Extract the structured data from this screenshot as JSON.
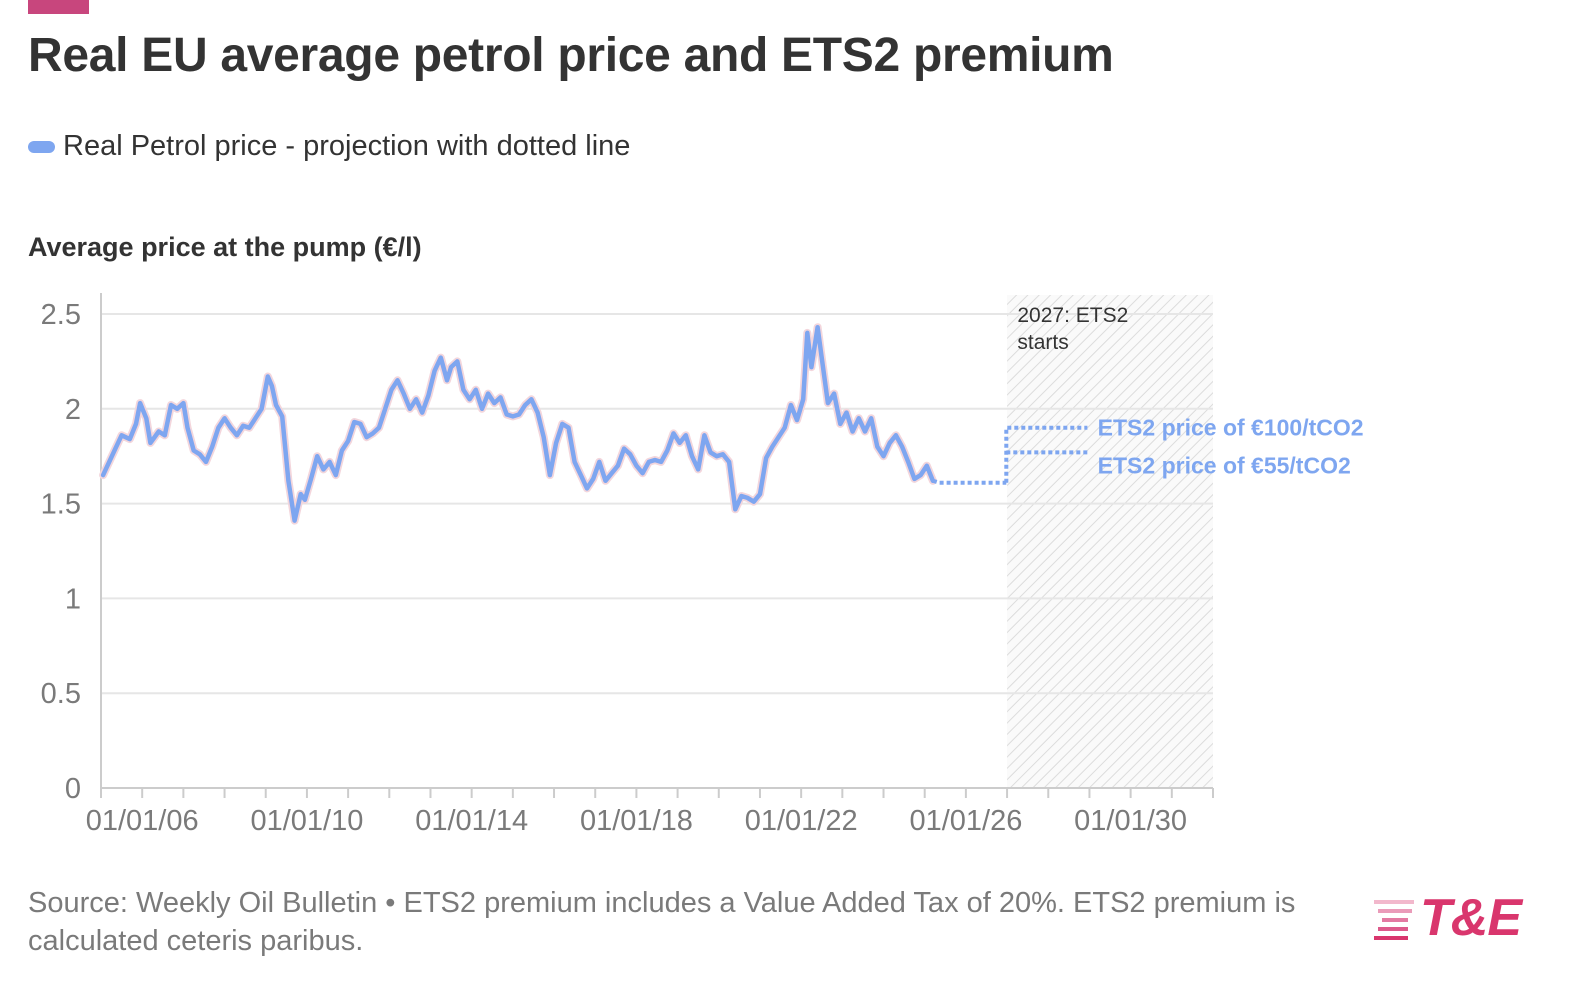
{
  "header": {
    "title": "Real EU average petrol price and ETS2 premium",
    "legend_label": "Real Petrol price - projection with dotted line",
    "axis_title": "Average price at the pump (€/l)"
  },
  "footer": {
    "source": "Source: Weekly Oil Bulletin • ETS2 premium includes a Value Added Tax of 20%. ETS2 premium is calculated ceteris paribus."
  },
  "logo": {
    "text": "T&E"
  },
  "colors": {
    "series": "#7ea6f0",
    "accent": "#c8467d",
    "logo": "#d9366d",
    "grid": "#e6e6e6",
    "text": "#333333",
    "muted": "#7a7a7a"
  },
  "chart_data": {
    "type": "line",
    "title": "Real EU average petrol price and ETS2 premium",
    "ylabel": "Average price at the pump (€/l)",
    "xlabel": "",
    "x_unit": "year",
    "xlim": [
      2005.0,
      2032.0
    ],
    "ylim": [
      0,
      2.6
    ],
    "y_ticks": [
      {
        "value": 0,
        "label": "0"
      },
      {
        "value": 0.5,
        "label": "0.5"
      },
      {
        "value": 1,
        "label": "1"
      },
      {
        "value": 1.5,
        "label": "1.5"
      },
      {
        "value": 2,
        "label": "2"
      },
      {
        "value": 2.5,
        "label": "2.5"
      }
    ],
    "x_ticks": [
      {
        "value": 2006,
        "label": "01/01/06"
      },
      {
        "value": 2010,
        "label": "01/01/10"
      },
      {
        "value": 2014,
        "label": "01/01/14"
      },
      {
        "value": 2018,
        "label": "01/01/18"
      },
      {
        "value": 2022,
        "label": "01/01/22"
      },
      {
        "value": 2026,
        "label": "01/01/26"
      },
      {
        "value": 2030,
        "label": "01/01/30"
      }
    ],
    "grid": true,
    "series": [
      {
        "name": "Real Petrol price - projection with dotted line",
        "style": "solid",
        "points": [
          [
            2005.05,
            1.65
          ],
          [
            2005.2,
            1.72
          ],
          [
            2005.35,
            1.79
          ],
          [
            2005.5,
            1.86
          ],
          [
            2005.7,
            1.84
          ],
          [
            2005.85,
            1.92
          ],
          [
            2005.95,
            2.03
          ],
          [
            2006.1,
            1.95
          ],
          [
            2006.2,
            1.82
          ],
          [
            2006.4,
            1.88
          ],
          [
            2006.55,
            1.86
          ],
          [
            2006.7,
            2.02
          ],
          [
            2006.85,
            2.0
          ],
          [
            2007.0,
            2.03
          ],
          [
            2007.1,
            1.9
          ],
          [
            2007.25,
            1.78
          ],
          [
            2007.4,
            1.76
          ],
          [
            2007.55,
            1.72
          ],
          [
            2007.7,
            1.8
          ],
          [
            2007.85,
            1.9
          ],
          [
            2008.0,
            1.95
          ],
          [
            2008.15,
            1.9
          ],
          [
            2008.3,
            1.86
          ],
          [
            2008.45,
            1.91
          ],
          [
            2008.6,
            1.9
          ],
          [
            2008.75,
            1.95
          ],
          [
            2008.9,
            2.0
          ],
          [
            2009.05,
            2.17
          ],
          [
            2009.15,
            2.12
          ],
          [
            2009.25,
            2.02
          ],
          [
            2009.4,
            1.96
          ],
          [
            2009.55,
            1.62
          ],
          [
            2009.7,
            1.41
          ],
          [
            2009.85,
            1.55
          ],
          [
            2009.95,
            1.52
          ],
          [
            2010.1,
            1.63
          ],
          [
            2010.25,
            1.75
          ],
          [
            2010.4,
            1.68
          ],
          [
            2010.55,
            1.72
          ],
          [
            2010.7,
            1.65
          ],
          [
            2010.85,
            1.78
          ],
          [
            2011.0,
            1.83
          ],
          [
            2011.15,
            1.93
          ],
          [
            2011.3,
            1.92
          ],
          [
            2011.45,
            1.85
          ],
          [
            2011.6,
            1.87
          ],
          [
            2011.75,
            1.9
          ],
          [
            2011.9,
            2.0
          ],
          [
            2012.05,
            2.1
          ],
          [
            2012.2,
            2.15
          ],
          [
            2012.35,
            2.08
          ],
          [
            2012.5,
            2.0
          ],
          [
            2012.65,
            2.05
          ],
          [
            2012.8,
            1.98
          ],
          [
            2012.95,
            2.07
          ],
          [
            2013.1,
            2.2
          ],
          [
            2013.25,
            2.27
          ],
          [
            2013.4,
            2.15
          ],
          [
            2013.5,
            2.22
          ],
          [
            2013.65,
            2.25
          ],
          [
            2013.8,
            2.1
          ],
          [
            2013.95,
            2.05
          ],
          [
            2014.1,
            2.1
          ],
          [
            2014.25,
            2.0
          ],
          [
            2014.4,
            2.08
          ],
          [
            2014.55,
            2.03
          ],
          [
            2014.7,
            2.06
          ],
          [
            2014.85,
            1.97
          ],
          [
            2015.0,
            1.96
          ],
          [
            2015.15,
            1.97
          ],
          [
            2015.3,
            2.02
          ],
          [
            2015.45,
            2.05
          ],
          [
            2015.6,
            1.98
          ],
          [
            2015.75,
            1.85
          ],
          [
            2015.9,
            1.65
          ],
          [
            2016.05,
            1.82
          ],
          [
            2016.2,
            1.92
          ],
          [
            2016.35,
            1.9
          ],
          [
            2016.5,
            1.72
          ],
          [
            2016.65,
            1.65
          ],
          [
            2016.8,
            1.58
          ],
          [
            2016.95,
            1.63
          ],
          [
            2017.1,
            1.72
          ],
          [
            2017.25,
            1.62
          ],
          [
            2017.4,
            1.66
          ],
          [
            2017.55,
            1.7
          ],
          [
            2017.7,
            1.79
          ],
          [
            2017.85,
            1.76
          ],
          [
            2018.0,
            1.7
          ],
          [
            2018.15,
            1.66
          ],
          [
            2018.3,
            1.72
          ],
          [
            2018.45,
            1.73
          ],
          [
            2018.6,
            1.72
          ],
          [
            2018.75,
            1.78
          ],
          [
            2018.9,
            1.87
          ],
          [
            2019.05,
            1.82
          ],
          [
            2019.2,
            1.86
          ],
          [
            2019.35,
            1.75
          ],
          [
            2019.5,
            1.68
          ],
          [
            2019.65,
            1.86
          ],
          [
            2019.8,
            1.77
          ],
          [
            2019.95,
            1.75
          ],
          [
            2020.1,
            1.76
          ],
          [
            2020.25,
            1.72
          ],
          [
            2020.4,
            1.47
          ],
          [
            2020.55,
            1.54
          ],
          [
            2020.7,
            1.53
          ],
          [
            2020.85,
            1.51
          ],
          [
            2021.0,
            1.55
          ],
          [
            2021.15,
            1.74
          ],
          [
            2021.3,
            1.8
          ],
          [
            2021.45,
            1.85
          ],
          [
            2021.6,
            1.9
          ],
          [
            2021.75,
            2.02
          ],
          [
            2021.9,
            1.94
          ],
          [
            2022.05,
            2.05
          ],
          [
            2022.15,
            2.4
          ],
          [
            2022.25,
            2.22
          ],
          [
            2022.4,
            2.43
          ],
          [
            2022.5,
            2.27
          ],
          [
            2022.65,
            2.03
          ],
          [
            2022.8,
            2.08
          ],
          [
            2022.95,
            1.92
          ],
          [
            2023.1,
            1.98
          ],
          [
            2023.25,
            1.88
          ],
          [
            2023.4,
            1.95
          ],
          [
            2023.55,
            1.88
          ],
          [
            2023.7,
            1.95
          ],
          [
            2023.85,
            1.8
          ],
          [
            2024.0,
            1.75
          ],
          [
            2024.15,
            1.82
          ],
          [
            2024.3,
            1.86
          ],
          [
            2024.45,
            1.8
          ],
          [
            2024.6,
            1.72
          ],
          [
            2024.75,
            1.63
          ],
          [
            2024.9,
            1.65
          ],
          [
            2025.05,
            1.7
          ],
          [
            2025.2,
            1.62
          ]
        ]
      },
      {
        "name": "Projection",
        "style": "dotted",
        "points": [
          [
            2025.2,
            1.62
          ],
          [
            2025.35,
            1.61
          ],
          [
            2026.9,
            1.61
          ],
          [
            2026.98,
            1.61
          ]
        ]
      },
      {
        "name": "ETS2 price of €100/tCO2",
        "style": "dotted",
        "points": [
          [
            2026.98,
            1.61
          ],
          [
            2026.98,
            1.9
          ],
          [
            2028.95,
            1.9
          ]
        ]
      },
      {
        "name": "ETS2 price of €55/tCO2",
        "style": "dotted",
        "points": [
          [
            2026.98,
            1.77
          ],
          [
            2028.95,
            1.77
          ]
        ]
      }
    ],
    "highlight_region": {
      "x_start": 2027.0,
      "x_end": 2032.0,
      "fill": "hatched"
    },
    "annotations": [
      {
        "text_lines": [
          "2027: ETS2",
          "starts"
        ],
        "x": 2027.25,
        "y": 2.5,
        "color": "#333333",
        "weight": "normal"
      },
      {
        "text": "ETS2 price of €100/tCO2",
        "x": 2029.2,
        "y": 1.9,
        "color": "#7ea6f0",
        "weight": "bold"
      },
      {
        "text": "ETS2 price of €55/tCO2",
        "x": 2029.2,
        "y": 1.7,
        "color": "#7ea6f0",
        "weight": "bold"
      }
    ]
  }
}
